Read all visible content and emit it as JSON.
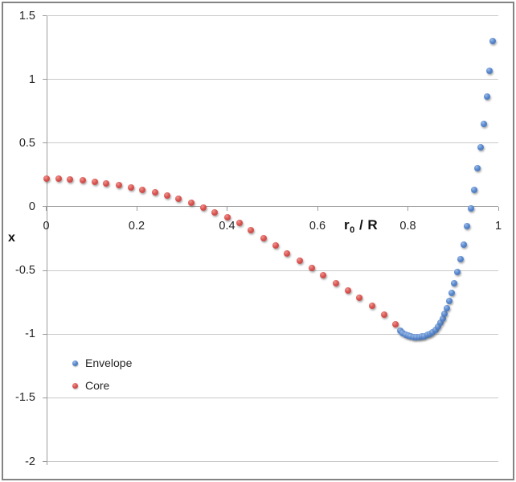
{
  "chart_data": {
    "type": "scatter",
    "title": "",
    "xlabel": {
      "base": "r",
      "sub": "0",
      "rest": " / R"
    },
    "ylabel": "x",
    "xlim": [
      0,
      1
    ],
    "ylim": [
      -2,
      1.5
    ],
    "grid": "horizontal",
    "legend_position": "inside-lower-left",
    "xticks": [
      {
        "v": 0,
        "label": "0"
      },
      {
        "v": 0.2,
        "label": "0.2"
      },
      {
        "v": 0.4,
        "label": "0.4"
      },
      {
        "v": 0.6,
        "label": "0.6"
      },
      {
        "v": 0.8,
        "label": "0.8"
      },
      {
        "v": 1,
        "label": "1"
      }
    ],
    "yticks": [
      {
        "v": 1.5,
        "label": "1.5"
      },
      {
        "v": 1,
        "label": "1"
      },
      {
        "v": 0.5,
        "label": "0.5"
      },
      {
        "v": 0,
        "label": "0"
      },
      {
        "v": -0.5,
        "label": "-0.5"
      },
      {
        "v": -1,
        "label": "-1"
      },
      {
        "v": -1.5,
        "label": "-1.5"
      },
      {
        "v": -2,
        "label": "-2"
      }
    ],
    "axis_cross_y": 0,
    "colors": {
      "envelope_light": "#9DBCE8",
      "envelope": "#5585CC",
      "envelope_dark": "#3E6CB0",
      "core_light": "#EE9490",
      "core": "#D9534F",
      "core_dark": "#B23E3B",
      "gridline": "#C9C9C9",
      "axis": "#9B9B9B",
      "text": "#262626"
    },
    "series": [
      {
        "name": "Envelope",
        "color": "#5585CC",
        "color_light": "#9DBCE8",
        "color_dark": "#3E6CB0",
        "points": [
          [
            0.783,
            -0.971
          ],
          [
            0.789,
            -0.99
          ],
          [
            0.795,
            -1.003
          ],
          [
            0.801,
            -1.011
          ],
          [
            0.807,
            -1.017
          ],
          [
            0.813,
            -1.021
          ],
          [
            0.819,
            -1.023
          ],
          [
            0.825,
            -1.023
          ],
          [
            0.831,
            -1.02
          ],
          [
            0.837,
            -1.015
          ],
          [
            0.843,
            -1.008
          ],
          [
            0.849,
            -0.997
          ],
          [
            0.855,
            -0.983
          ],
          [
            0.861,
            -0.965
          ],
          [
            0.867,
            -0.942
          ],
          [
            0.872,
            -0.913
          ],
          [
            0.877,
            -0.88
          ],
          [
            0.881,
            -0.842
          ],
          [
            0.886,
            -0.795
          ],
          [
            0.891,
            -0.74
          ],
          [
            0.897,
            -0.675
          ],
          [
            0.903,
            -0.6
          ],
          [
            0.91,
            -0.51
          ],
          [
            0.917,
            -0.41
          ],
          [
            0.924,
            -0.3
          ],
          [
            0.931,
            -0.15
          ],
          [
            0.939,
            -0.015
          ],
          [
            0.946,
            0.13
          ],
          [
            0.954,
            0.3
          ],
          [
            0.961,
            0.47
          ],
          [
            0.968,
            0.65
          ],
          [
            0.975,
            0.865
          ],
          [
            0.981,
            1.065
          ],
          [
            0.988,
            1.3
          ]
        ]
      },
      {
        "name": "Core",
        "color": "#D9534F",
        "color_light": "#EE9490",
        "color_dark": "#B23E3B",
        "points": [
          [
            0.0,
            0.222
          ],
          [
            0.027,
            0.22
          ],
          [
            0.053,
            0.217
          ],
          [
            0.08,
            0.209
          ],
          [
            0.107,
            0.197
          ],
          [
            0.133,
            0.184
          ],
          [
            0.16,
            0.17
          ],
          [
            0.187,
            0.153
          ],
          [
            0.213,
            0.134
          ],
          [
            0.24,
            0.113
          ],
          [
            0.267,
            0.089
          ],
          [
            0.293,
            0.063
          ],
          [
            0.32,
            0.031
          ],
          [
            0.347,
            -0.006
          ],
          [
            0.373,
            -0.046
          ],
          [
            0.4,
            -0.082
          ],
          [
            0.427,
            -0.128
          ],
          [
            0.453,
            -0.185
          ],
          [
            0.48,
            -0.245
          ],
          [
            0.507,
            -0.305
          ],
          [
            0.533,
            -0.365
          ],
          [
            0.56,
            -0.424
          ],
          [
            0.587,
            -0.482
          ],
          [
            0.613,
            -0.54
          ],
          [
            0.64,
            -0.598
          ],
          [
            0.667,
            -0.656
          ],
          [
            0.693,
            -0.714
          ],
          [
            0.72,
            -0.775
          ],
          [
            0.747,
            -0.845
          ],
          [
            0.773,
            -0.92
          ]
        ]
      }
    ]
  }
}
